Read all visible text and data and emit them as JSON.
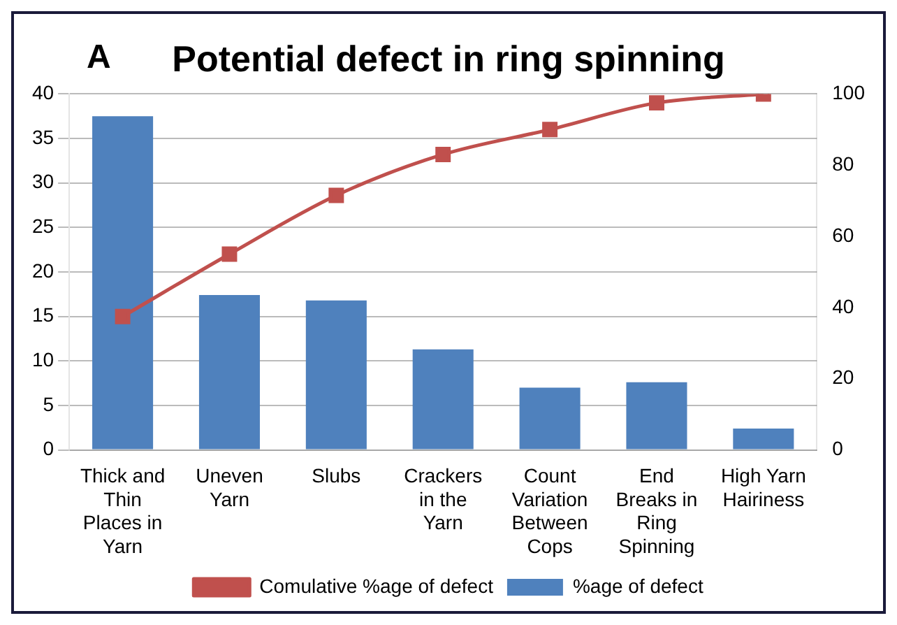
{
  "chart_data": {
    "type": "bar",
    "title": "Potential defect in ring spinning",
    "annotations": [
      "A"
    ],
    "categories": [
      "Thick and Thin Places in Yarn",
      "Uneven Yarn",
      "Slubs",
      "Crackers in the Yarn",
      "Count Variation Between Cops",
      "End Breaks in Ring Spinning",
      "High Yarn Hairiness"
    ],
    "series": [
      {
        "name": "%age of defect",
        "color": "#4f81bd",
        "values": [
          37.5,
          17.4,
          16.8,
          11.3,
          7,
          7.6,
          2.4
        ]
      },
      {
        "name": "Comulative %age of defect",
        "type": "line",
        "axis": "y2",
        "color": "#c0504d",
        "marker": "square",
        "values": [
          37.5,
          55,
          71.5,
          83,
          90,
          97.5,
          100
        ]
      }
    ],
    "ylim": [
      0,
      40
    ],
    "yticks": [
      0,
      5,
      10,
      15,
      20,
      25,
      30,
      35,
      40
    ],
    "y2lim": [
      0,
      100
    ],
    "y2ticks": [
      0,
      20,
      40,
      60,
      80,
      100
    ],
    "grid": "y",
    "legend": "bottom"
  }
}
